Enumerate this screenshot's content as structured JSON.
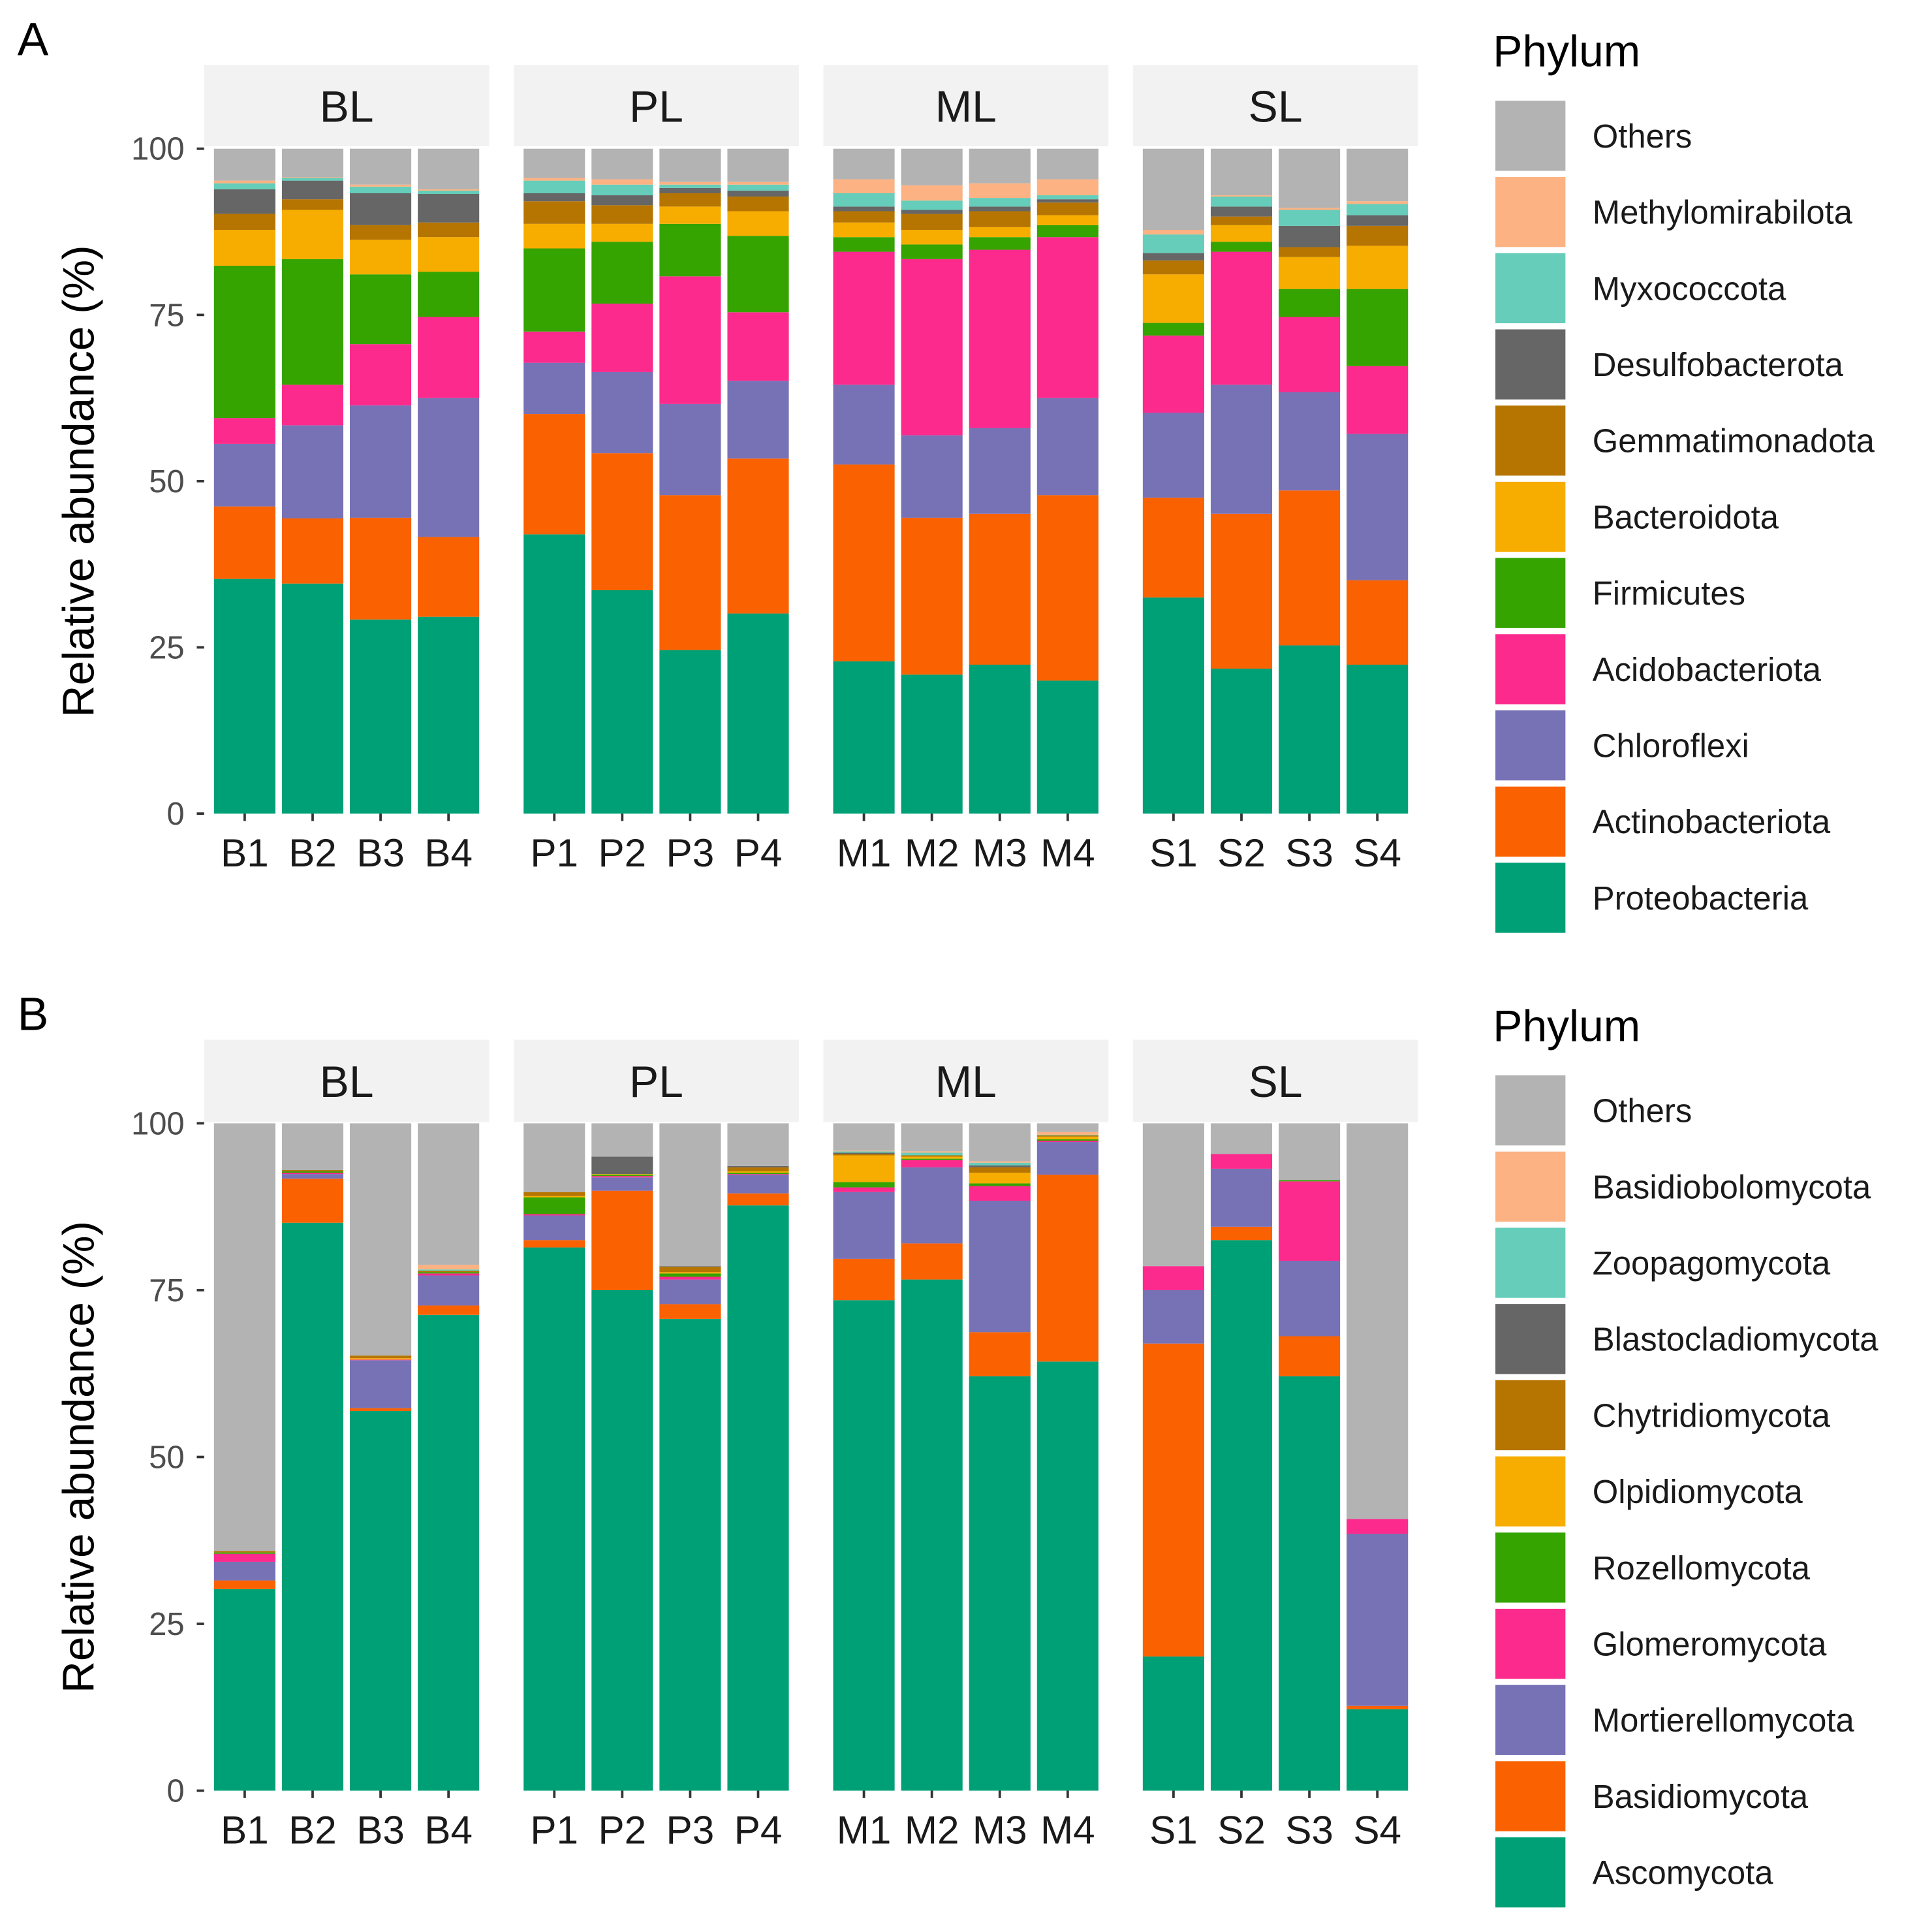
{
  "chart_data": [
    {
      "type": "bar",
      "stacked": true,
      "panel_label": "A",
      "ylabel": "Relative abundance (%)",
      "ylim": [
        0,
        100
      ],
      "yticks": [
        "0",
        "25",
        "50",
        "75",
        "100"
      ],
      "facets": [
        "BL",
        "PL",
        "ML",
        "SL"
      ],
      "categories": [
        [
          "B1",
          "B2",
          "B3",
          "B4"
        ],
        [
          "P1",
          "P2",
          "P3",
          "P4"
        ],
        [
          "M1",
          "M2",
          "M3",
          "M4"
        ],
        [
          "S1",
          "S2",
          "S3",
          "S4"
        ]
      ],
      "legend_title": "Phylum",
      "legend_position": "right",
      "stack_order": [
        "Proteobacteria",
        "Actinobacteriota",
        "Chloroflexi",
        "Acidobacteriota",
        "Firmicutes",
        "Bacteroidota",
        "Gemmatimonadota",
        "Desulfobacterota",
        "Myxococcota",
        "Methylomirabilota",
        "Others"
      ],
      "legend": [
        "Others",
        "Methylomirabilota",
        "Myxococcota",
        "Desulfobacterota",
        "Gemmatimonadota",
        "Bacteroidota",
        "Firmicutes",
        "Acidobacteriota",
        "Chloroflexi",
        "Actinobacteriota",
        "Proteobacteria"
      ],
      "colors": {
        "Proteobacteria": "#00A077",
        "Actinobacteriota": "#FA6100",
        "Chloroflexi": "#7772B6",
        "Acidobacteriota": "#FB2A8C",
        "Firmicutes": "#35A300",
        "Bacteroidota": "#F7AD00",
        "Gemmatimonadota": "#B67500",
        "Desulfobacterota": "#666666",
        "Myxococcota": "#65CDB9",
        "Methylomirabilota": "#FCB282",
        "Others": "#B3B3B3"
      },
      "cumulative_tops_percent": {
        "B1": [
          35.3,
          46.2,
          55.6,
          59.5,
          82.4,
          87.8,
          90.2,
          93.9,
          94.8,
          95.2,
          100
        ],
        "B2": [
          34.6,
          44.4,
          58.4,
          64.5,
          83.4,
          90.8,
          92.4,
          95.2,
          95.6,
          95.7,
          100
        ],
        "B3": [
          29.2,
          44.5,
          61.4,
          70.6,
          81.1,
          86.3,
          88.5,
          93.3,
          94.3,
          94.6,
          100
        ],
        "B4": [
          29.6,
          41.6,
          62.5,
          74.7,
          81.5,
          86.7,
          88.9,
          93.2,
          93.7,
          93.9,
          100
        ],
        "P1": [
          42.0,
          60.1,
          67.8,
          72.5,
          85.0,
          88.7,
          92.1,
          93.3,
          95.2,
          95.6,
          100
        ],
        "P2": [
          33.6,
          54.2,
          66.4,
          76.7,
          86.0,
          88.7,
          91.5,
          93.0,
          94.6,
          95.4,
          100
        ],
        "P3": [
          24.6,
          47.9,
          61.6,
          80.8,
          88.7,
          91.3,
          93.3,
          94.1,
          94.6,
          95.0,
          100
        ],
        "P4": [
          30.1,
          53.4,
          65.1,
          75.4,
          86.9,
          90.6,
          92.8,
          93.7,
          94.6,
          95.0,
          100
        ],
        "M1": [
          22.9,
          52.5,
          64.5,
          84.5,
          86.7,
          88.9,
          90.6,
          91.3,
          93.3,
          95.4,
          100
        ],
        "M2": [
          20.9,
          44.5,
          56.9,
          83.4,
          85.6,
          87.8,
          90.2,
          90.8,
          92.2,
          94.5,
          100
        ],
        "M3": [
          22.4,
          45.1,
          58.0,
          84.8,
          86.7,
          88.2,
          90.6,
          91.3,
          92.6,
          94.8,
          100
        ],
        "M4": [
          20.0,
          47.9,
          62.5,
          86.7,
          88.5,
          90.0,
          91.9,
          92.4,
          93.0,
          95.4,
          100
        ],
        "S1": [
          32.5,
          47.5,
          60.3,
          71.9,
          73.8,
          81.1,
          83.2,
          84.3,
          87.1,
          87.8,
          100
        ],
        "S2": [
          21.8,
          45.1,
          64.5,
          84.5,
          86.0,
          88.5,
          89.8,
          91.3,
          92.8,
          93.0,
          100
        ],
        "S3": [
          25.3,
          48.6,
          63.4,
          74.7,
          78.9,
          83.7,
          85.2,
          88.4,
          90.8,
          91.1,
          100
        ],
        "S4": [
          22.4,
          35.1,
          57.1,
          67.3,
          78.9,
          85.4,
          88.4,
          90.0,
          91.7,
          92.1,
          100
        ]
      }
    },
    {
      "type": "bar",
      "stacked": true,
      "panel_label": "B",
      "ylabel": "Relative abundance (%)",
      "ylim": [
        0,
        100
      ],
      "yticks": [
        "0",
        "25",
        "50",
        "75",
        "100"
      ],
      "facets": [
        "BL",
        "PL",
        "ML",
        "SL"
      ],
      "categories": [
        [
          "B1",
          "B2",
          "B3",
          "B4"
        ],
        [
          "P1",
          "P2",
          "P3",
          "P4"
        ],
        [
          "M1",
          "M2",
          "M3",
          "M4"
        ],
        [
          "S1",
          "S2",
          "S3",
          "S4"
        ]
      ],
      "legend_title": "Phylum",
      "legend_position": "right",
      "stack_order": [
        "Ascomycota",
        "Basidiomycota",
        "Mortierellomycota",
        "Glomeromycota",
        "Rozellomycota",
        "Olpidiomycota",
        "Chytridiomycota",
        "Blastocladiomycota",
        "Zoopagomycota",
        "Basidiobolomycota",
        "Others"
      ],
      "legend": [
        "Others",
        "Basidiobolomycota",
        "Zoopagomycota",
        "Blastocladiomycota",
        "Chytridiomycota",
        "Olpidiomycota",
        "Rozellomycota",
        "Glomeromycota",
        "Mortierellomycota",
        "Basidiomycota",
        "Ascomycota"
      ],
      "colors": {
        "Ascomycota": "#00A077",
        "Basidiomycota": "#FA6100",
        "Mortierellomycota": "#7772B6",
        "Glomeromycota": "#FB2A8C",
        "Rozellomycota": "#35A300",
        "Olpidiomycota": "#F7AD00",
        "Chytridiomycota": "#B67500",
        "Blastocladiomycota": "#666666",
        "Zoopagomycota": "#65CDB9",
        "Basidiobolomycota": "#FCB282",
        "Others": "#B3B3B3"
      },
      "cumulative_tops_percent": {
        "B1": [
          30.2,
          31.5,
          34.3,
          35.5,
          35.7,
          35.7,
          35.9,
          35.9,
          35.9,
          35.9,
          100
        ],
        "B2": [
          85.1,
          91.7,
          92.4,
          92.6,
          92.8,
          92.8,
          93.0,
          93.0,
          93.0,
          93.0,
          100
        ],
        "B3": [
          56.9,
          57.3,
          64.5,
          64.6,
          64.6,
          64.8,
          65.2,
          65.2,
          65.2,
          65.2,
          100
        ],
        "B4": [
          71.3,
          72.7,
          77.2,
          77.5,
          77.7,
          77.7,
          77.9,
          77.9,
          78.1,
          78.8,
          100
        ],
        "P1": [
          81.4,
          82.5,
          86.2,
          86.4,
          88.9,
          89.1,
          89.7,
          89.7,
          89.7,
          89.7,
          100
        ],
        "P2": [
          75.0,
          89.9,
          91.9,
          92.1,
          92.3,
          92.4,
          92.4,
          95.0,
          95.0,
          95.0,
          100
        ],
        "P3": [
          70.7,
          72.9,
          76.6,
          77.0,
          77.5,
          77.7,
          78.5,
          78.6,
          78.6,
          78.6,
          100
        ],
        "P4": [
          87.7,
          89.5,
          92.3,
          92.4,
          92.6,
          92.8,
          93.4,
          93.6,
          93.6,
          93.6,
          100
        ],
        "M1": [
          73.5,
          79.7,
          89.7,
          90.4,
          91.2,
          95.2,
          95.4,
          95.6,
          95.8,
          95.9,
          100
        ],
        "M2": [
          76.6,
          82.0,
          93.4,
          94.5,
          94.7,
          95.0,
          95.2,
          95.2,
          95.6,
          95.8,
          100
        ],
        "M3": [
          62.1,
          68.7,
          88.4,
          90.6,
          91.0,
          92.6,
          93.4,
          93.7,
          94.1,
          94.3,
          100
        ],
        "M4": [
          64.3,
          92.3,
          97.2,
          97.4,
          97.6,
          98.0,
          98.2,
          98.2,
          98.3,
          98.7,
          100
        ],
        "S1": [
          20.1,
          67.0,
          75.0,
          78.6,
          78.6,
          78.6,
          78.6,
          78.6,
          78.6,
          78.6,
          100
        ],
        "S2": [
          82.5,
          84.5,
          93.2,
          95.4,
          95.4,
          95.4,
          95.4,
          95.4,
          95.4,
          95.4,
          100
        ],
        "S3": [
          62.1,
          68.1,
          79.4,
          91.3,
          91.5,
          91.5,
          91.5,
          91.5,
          91.5,
          91.5,
          100
        ],
        "S4": [
          12.2,
          12.7,
          38.5,
          40.7,
          40.7,
          40.7,
          40.7,
          40.7,
          40.7,
          40.7,
          100
        ]
      }
    }
  ]
}
